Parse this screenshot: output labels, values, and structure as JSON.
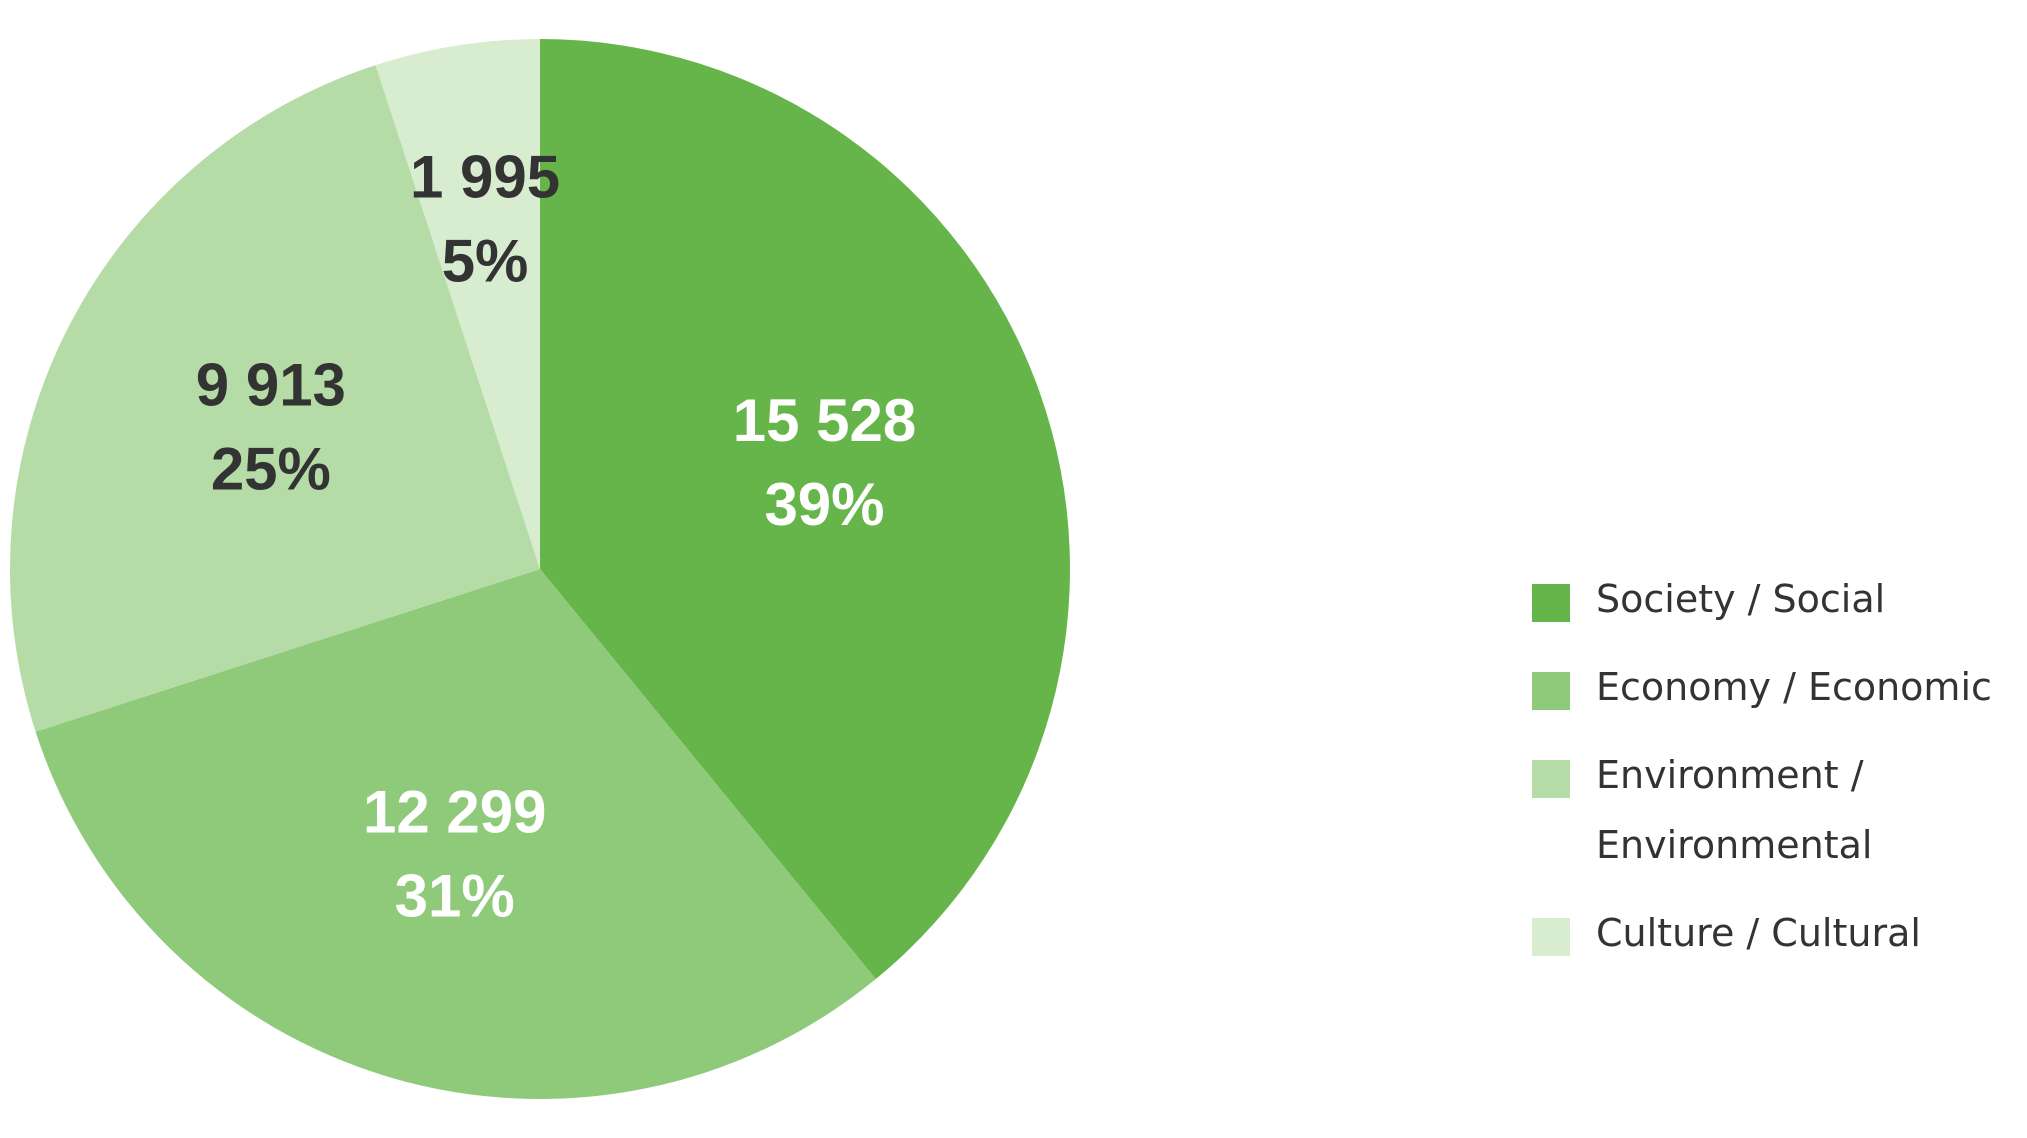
{
  "chart_data": {
    "type": "pie",
    "categories": [
      "Society / Social",
      "Economy / Economic",
      "Environment / Environmental",
      "Culture / Cultural"
    ],
    "values": [
      15528,
      12299,
      9913,
      1995
    ],
    "value_labels": [
      "15 528",
      "12 299",
      "9 913",
      "1 995"
    ],
    "percentages": [
      39,
      31,
      25,
      5
    ],
    "percentage_labels": [
      "39%",
      "31%",
      "25%",
      "5%"
    ],
    "colors": [
      "#66b54a",
      "#8fca7a",
      "#b5dca6",
      "#d8edd0"
    ],
    "label_colors": [
      "#ffffff",
      "#ffffff",
      "#333333",
      "#333333"
    ],
    "legend": "right"
  }
}
